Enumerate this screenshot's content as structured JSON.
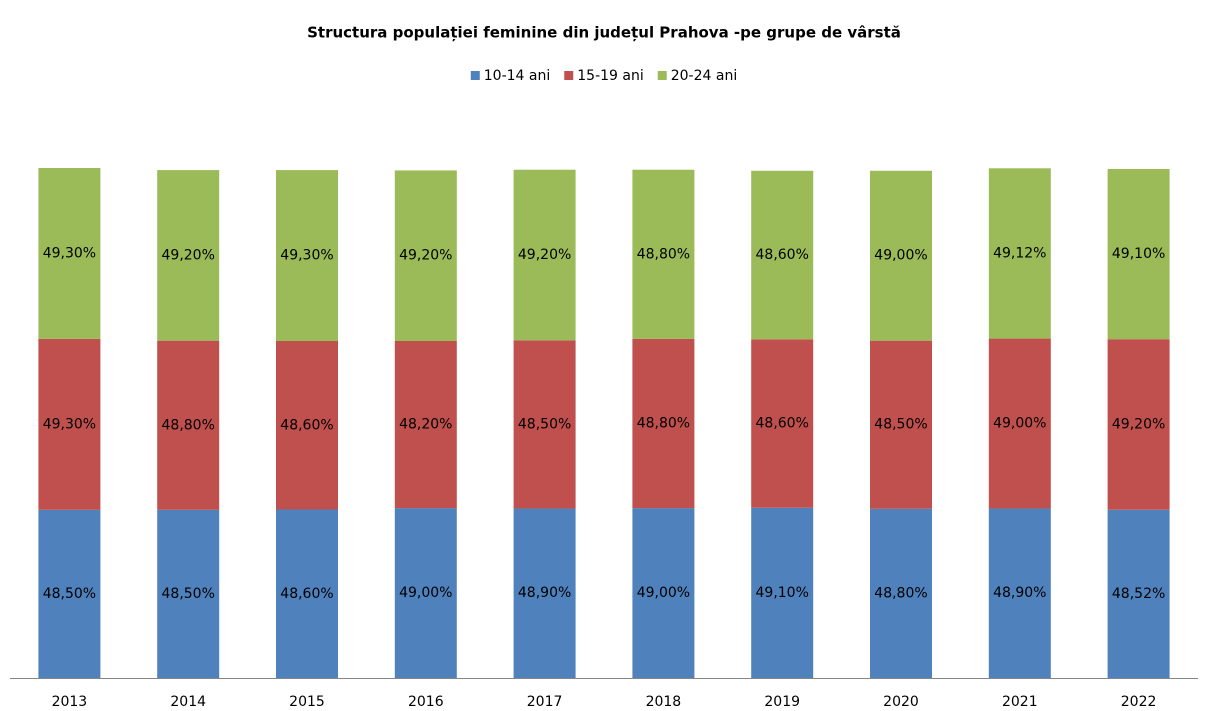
{
  "chart_data": {
    "type": "stacked_bar",
    "title": "Structura populației feminine din județul Prahova -pe grupe de vârstă",
    "categories": [
      "2013",
      "2014",
      "2015",
      "2016",
      "2017",
      "2018",
      "2019",
      "2020",
      "2021",
      "2022"
    ],
    "series": [
      {
        "name": "10-14 ani",
        "color": "#4f81bd",
        "values": [
          48.5,
          48.5,
          48.6,
          49.0,
          48.9,
          49.0,
          49.1,
          48.8,
          48.9,
          48.52
        ],
        "value_labels": [
          "48,50%",
          "48,50%",
          "48,60%",
          "49,00%",
          "48,90%",
          "49,00%",
          "49,10%",
          "48,80%",
          "48,90%",
          "48,52%"
        ]
      },
      {
        "name": "15-19 ani",
        "color": "#c0504d",
        "values": [
          49.3,
          48.8,
          48.6,
          48.2,
          48.5,
          48.8,
          48.6,
          48.5,
          49.0,
          49.2
        ],
        "value_labels": [
          "49,30%",
          "48,80%",
          "48,60%",
          "48,20%",
          "48,50%",
          "48,80%",
          "48,60%",
          "48,50%",
          "49,00%",
          "49,20%"
        ]
      },
      {
        "name": "20-24 ani",
        "color": "#9bbb59",
        "values": [
          49.3,
          49.2,
          49.3,
          49.2,
          49.2,
          48.8,
          48.6,
          49.0,
          49.12,
          49.1
        ],
        "value_labels": [
          "49,30%",
          "49,20%",
          "49,30%",
          "49,20%",
          "49,20%",
          "48,80%",
          "48,60%",
          "49,00%",
          "49,12%",
          "49,10%"
        ]
      }
    ],
    "legend": "top"
  }
}
